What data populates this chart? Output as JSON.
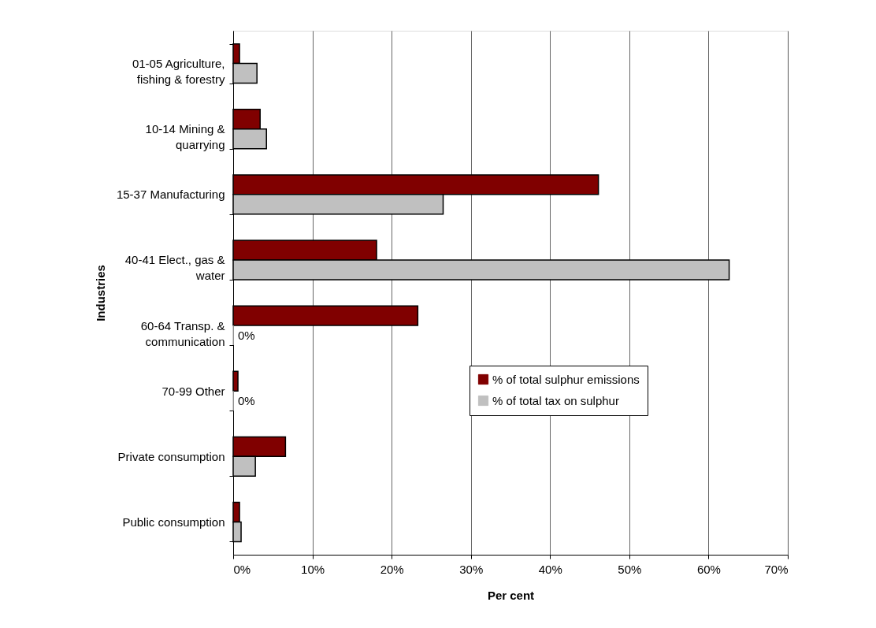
{
  "chart_data": {
    "type": "bar",
    "orientation": "horizontal",
    "xlabel": "Per cent",
    "ylabel": "Industries",
    "categories": [
      "01-05 Agriculture,\nfishing & forestry",
      "10-14 Mining &\nquarrying",
      "15-37 Manufacturing",
      "40-41 Elect., gas &\nwater",
      "60-64 Transp. &\ncommunication",
      "70-99 Other",
      "Private consumption",
      "Public consumption"
    ],
    "series": [
      {
        "name": "% of total sulphur emissions",
        "color": "#800000",
        "values": [
          0.8,
          3.4,
          46.1,
          18.1,
          23.3,
          0.6,
          6.6,
          0.8
        ]
      },
      {
        "name": "% of total tax on sulphur",
        "color": "#c0c0c0",
        "values": [
          3.0,
          4.2,
          26.5,
          62.6,
          0,
          0,
          2.8,
          1.0
        ],
        "value_labels": [
          null,
          null,
          null,
          null,
          "0%",
          "0%",
          null,
          null
        ]
      }
    ],
    "xlim": [
      0,
      70
    ],
    "xticks": [
      {
        "value": 0,
        "label": "0%"
      },
      {
        "value": 10,
        "label": "10%"
      },
      {
        "value": 20,
        "label": "20%"
      },
      {
        "value": 30,
        "label": "30%"
      },
      {
        "value": 40,
        "label": "40%"
      },
      {
        "value": 50,
        "label": "50%"
      },
      {
        "value": 60,
        "label": "60%"
      },
      {
        "value": 70,
        "label": "70%"
      }
    ],
    "grid": "x",
    "legend": "right"
  }
}
